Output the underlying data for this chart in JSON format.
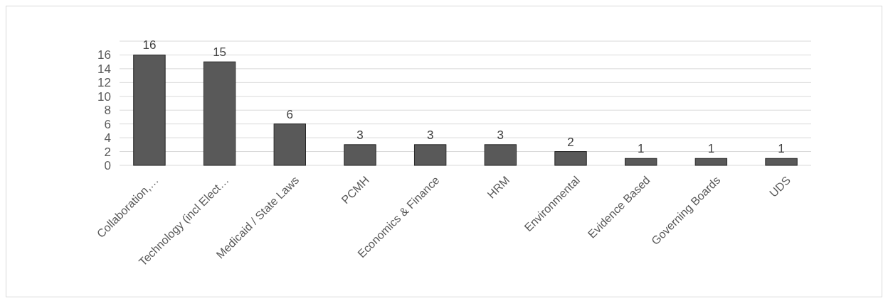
{
  "chart_data": {
    "type": "bar",
    "categories": [
      "Collaboration,…",
      "Technology (incl Elect…",
      "Medicaid / State Laws",
      "PCMH",
      "Economics & Finance",
      "HRM",
      "Environmental",
      "Evidence Based",
      "Governing Boards",
      "UDS"
    ],
    "values": [
      16,
      15,
      6,
      3,
      3,
      3,
      2,
      1,
      1,
      1
    ],
    "color": "#595959",
    "ylim": [
      0,
      18
    ],
    "yticks": [
      0,
      2,
      4,
      6,
      8,
      10,
      12,
      14,
      16
    ],
    "grid": "y",
    "data_labels": true
  }
}
